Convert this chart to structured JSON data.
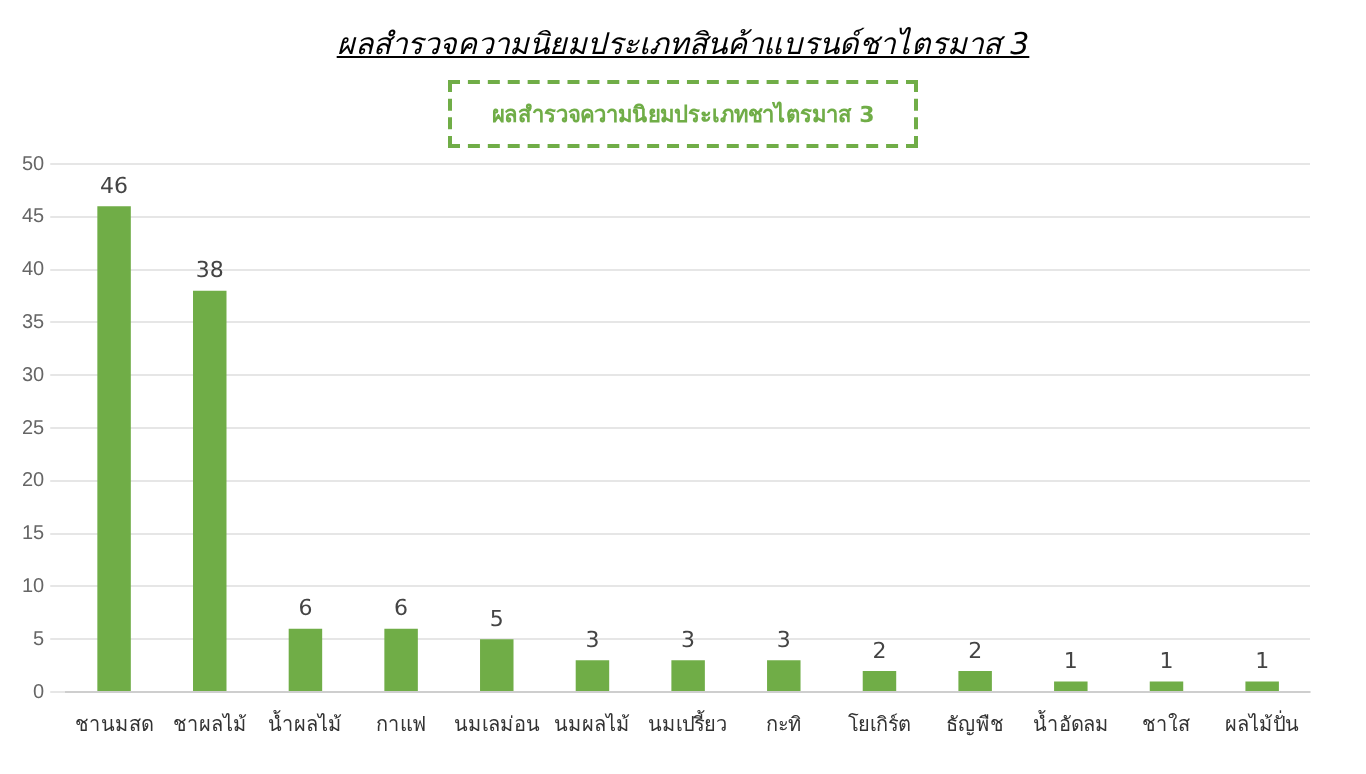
{
  "chart_data": {
    "type": "bar",
    "title": "ผลสำรวจความนิยมประเภทสินค้าแบรนด์ชาไตรมาส 3",
    "subtitle": "ผลสำรวจความนิยมประเภทชาไตรมาส 3",
    "categories": [
      "ชานมสด",
      "ชาผลไม้",
      "น้ำผลไม้",
      "กาแฟ",
      "นมเลม่อน",
      "นมผลไม้",
      "นมเปรี้ยว",
      "กะทิ",
      "โยเกิร์ต",
      "ธัญพืช",
      "น้ำอัดลม",
      "ชาใส",
      "ผลไม้ปั่น"
    ],
    "values": [
      46,
      38,
      6,
      6,
      5,
      3,
      3,
      3,
      2,
      2,
      1,
      1,
      1
    ],
    "color": "#70ad47",
    "ylim": [
      0,
      50
    ],
    "yticks": [
      0,
      5,
      10,
      15,
      20,
      25,
      30,
      35,
      40,
      45,
      50
    ],
    "grid": "y",
    "data_labels": true,
    "legend": false
  }
}
